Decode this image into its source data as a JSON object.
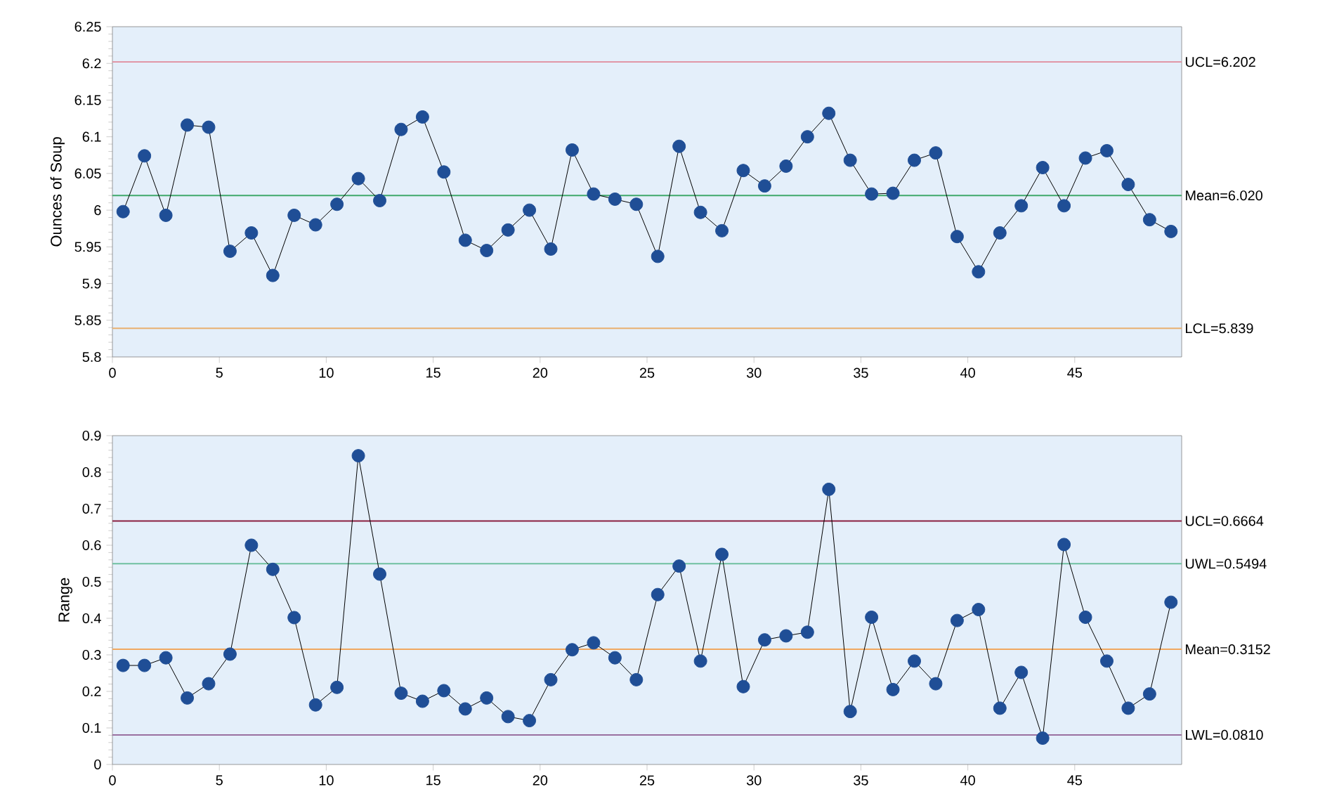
{
  "chart_data": [
    {
      "type": "line",
      "ylabel": "Ounces of Soup",
      "marker": "circle",
      "line_style": "solid",
      "x": [
        0.5,
        1.5,
        2.5,
        3.5,
        4.5,
        5.5,
        6.5,
        7.5,
        8.5,
        9.5,
        10.5,
        11.5,
        12.5,
        13.5,
        14.5,
        15.5,
        16.5,
        17.5,
        18.5,
        19.5,
        20.5,
        21.5,
        22.5,
        23.5,
        24.5,
        25.5,
        26.5,
        27.5,
        28.5,
        29.5,
        30.5,
        31.5,
        32.5,
        33.5,
        34.5,
        35.5,
        36.5,
        37.5,
        38.5,
        39.5,
        40.5,
        41.5,
        42.5,
        43.5,
        44.5,
        45.5,
        46.5,
        47.5,
        48.5,
        49.5
      ],
      "series": [
        {
          "color": "#1f4e96",
          "values": [
            5.998,
            6.074,
            5.993,
            6.116,
            6.113,
            5.944,
            5.969,
            5.911,
            5.993,
            5.98,
            6.008,
            6.043,
            6.013,
            6.11,
            6.127,
            6.052,
            5.959,
            5.945,
            5.973,
            6.0,
            5.947,
            6.082,
            6.022,
            6.015,
            6.008,
            5.937,
            6.087,
            5.997,
            5.972,
            6.054,
            6.033,
            6.06,
            6.1,
            6.132,
            6.068,
            6.022,
            6.023,
            6.068,
            6.078,
            5.964,
            5.916,
            5.969,
            6.006,
            6.058,
            6.006,
            6.071,
            6.081,
            6.035,
            5.987,
            5.971
          ]
        }
      ],
      "xlim": [
        0,
        50
      ],
      "xticks": [
        0,
        5,
        10,
        15,
        20,
        25,
        30,
        35,
        40,
        45
      ],
      "ylim": [
        5.8,
        6.25
      ],
      "yticks": [
        {
          "value": 5.8,
          "label": "5.8"
        },
        5.85,
        {
          "value": 5.9,
          "label": "5.9"
        },
        5.95,
        {
          "value": 6.0,
          "label": "6"
        },
        6.05,
        {
          "value": 6.1,
          "label": "6.1"
        },
        6.15,
        {
          "value": 6.2,
          "label": "6.2"
        },
        6.25
      ],
      "ref_lines": [
        {
          "axis": "y",
          "value": 6.202,
          "label": "UCL=6.202",
          "color": "#e08a9a"
        },
        {
          "axis": "y",
          "value": 6.02,
          "label": "Mean=6.020",
          "color": "#3fa86a"
        },
        {
          "axis": "y",
          "value": 5.839,
          "label": "LCL=5.839",
          "color": "#e8b070"
        }
      ],
      "grid": false
    },
    {
      "type": "line",
      "ylabel": "Range",
      "marker": "circle",
      "line_style": "solid",
      "x": [
        0.5,
        1.5,
        2.5,
        3.5,
        4.5,
        5.5,
        6.5,
        7.5,
        8.5,
        9.5,
        10.5,
        11.5,
        12.5,
        13.5,
        14.5,
        15.5,
        16.5,
        17.5,
        18.5,
        19.5,
        20.5,
        21.5,
        22.5,
        23.5,
        24.5,
        25.5,
        26.5,
        27.5,
        28.5,
        29.5,
        30.5,
        31.5,
        32.5,
        33.5,
        34.5,
        35.5,
        36.5,
        37.5,
        38.5,
        39.5,
        40.5,
        41.5,
        42.5,
        43.5,
        44.5,
        45.5,
        46.5,
        47.5,
        48.5,
        49.5
      ],
      "series": [
        {
          "color": "#1f4e96",
          "values": [
            0.271,
            0.271,
            0.292,
            0.182,
            0.221,
            0.302,
            0.6,
            0.534,
            0.402,
            0.163,
            0.211,
            0.845,
            0.521,
            0.195,
            0.173,
            0.202,
            0.152,
            0.182,
            0.131,
            0.12,
            0.232,
            0.314,
            0.333,
            0.292,
            0.232,
            0.465,
            0.543,
            0.283,
            0.575,
            0.213,
            0.341,
            0.352,
            0.362,
            0.753,
            0.145,
            0.403,
            0.205,
            0.283,
            0.221,
            0.394,
            0.424,
            0.154,
            0.252,
            0.072,
            0.602,
            0.403,
            0.283,
            0.154,
            0.193,
            0.444
          ]
        }
      ],
      "xlim": [
        0,
        50
      ],
      "xticks": [
        0,
        5,
        10,
        15,
        20,
        25,
        30,
        35,
        40,
        45
      ],
      "ylim": [
        0,
        0.9
      ],
      "yticks": [
        0,
        0.1,
        0.2,
        0.3,
        0.4,
        0.5,
        0.6,
        0.7,
        0.8,
        0.9
      ],
      "ref_lines": [
        {
          "axis": "y",
          "value": 0.6664,
          "label": "UCL=0.6664",
          "color": "#8a2040"
        },
        {
          "axis": "y",
          "value": 0.5494,
          "label": "UWL=0.5494",
          "color": "#6fc0a0"
        },
        {
          "axis": "y",
          "value": 0.3152,
          "label": "Mean=0.3152",
          "color": "#f0a860"
        },
        {
          "axis": "y",
          "value": 0.081,
          "label": "LWL=0.0810",
          "color": "#9a70a0"
        }
      ],
      "grid": false
    }
  ]
}
